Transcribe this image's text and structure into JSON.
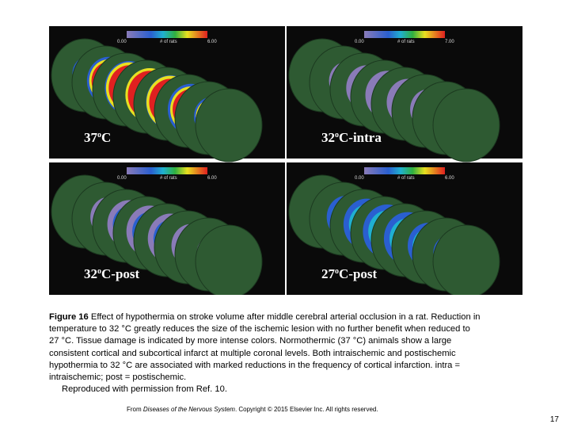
{
  "panels": [
    {
      "label": {
        "number": "37",
        "sup": "o",
        "suffix": "C"
      },
      "scale": {
        "min": "0.00",
        "title": "# of rats",
        "max": "6.00"
      }
    },
    {
      "label": {
        "number": "32",
        "sup": "o",
        "suffix": "C-intra"
      },
      "scale": {
        "min": "0.00",
        "title": "# of rats",
        "max": "7.00"
      }
    },
    {
      "label": {
        "number": "32",
        "sup": "o",
        "suffix": "C-post"
      },
      "scale": {
        "min": "0.00",
        "title": "# of rats",
        "max": "6.00"
      }
    },
    {
      "label": {
        "number": "27",
        "sup": "o",
        "suffix": "C-post"
      },
      "scale": {
        "min": "0.00",
        "title": "# of rats",
        "max": "6.00"
      }
    }
  ],
  "caption": {
    "label": "Figure 16",
    "lines": [
      "Effect of hypothermia on stroke volume after middle cerebral arterial occlusion in a rat. Reduction in",
      "temperature to 32 °C greatly reduces the size of the ischemic lesion with no further benefit when reduced to",
      "27 °C. Tissue damage is indicated by more intense colors. Normothermic (37 °C) animals show a large",
      "consistent cortical and subcortical infarct at multiple coronal levels. Both intraischemic and postischemic",
      "hypothermia to 32 °C are associated with marked reductions in the frequency of cortical infarction. intra =",
      "intraischemic; post = postischemic."
    ],
    "credit": "Reproduced with permission from Ref. 10."
  },
  "footer": {
    "prefix": "From ",
    "book": "Diseases of the Nervous System",
    "suffix": ". Copyright © 2015 Elsevier Inc. All rights reserved."
  },
  "page_number": "17"
}
